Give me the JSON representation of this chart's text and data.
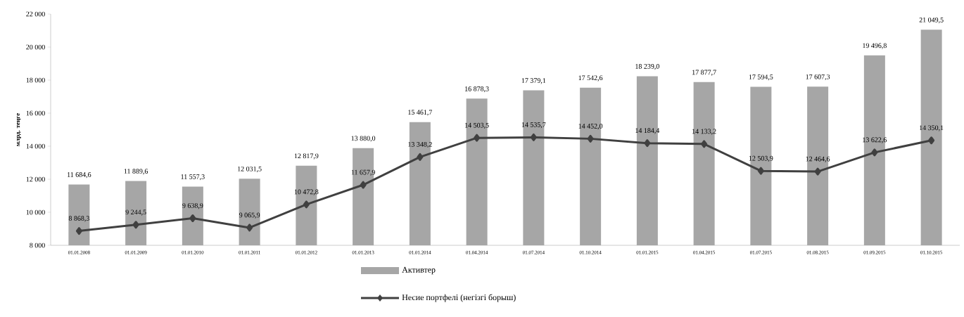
{
  "chart_data": {
    "type": "bar",
    "ylabel": "млрд. теңге",
    "categories": [
      "01.01.2008",
      "01.01.2009",
      "01.01.2010",
      "01.01.2011",
      "01.01.2012",
      "01.01.2013",
      "01.01.2014",
      "01.04.2014",
      "01.07.2014",
      "01.10.2014",
      "01.01.2015",
      "01.04.2015",
      "01.07.2015",
      "01.08.2015",
      "01.09.2015",
      "01.10.2015"
    ],
    "series": [
      {
        "name": "Активтер",
        "color": "#a6a6a6",
        "values": [
          11684.6,
          11889.6,
          11557.3,
          12031.5,
          12817.9,
          13880.0,
          15461.7,
          16878.3,
          17379.1,
          17542.6,
          18239.0,
          17877.7,
          17594.5,
          17607.3,
          19496.8,
          21049.5
        ],
        "value_labels": [
          "11 684,6",
          "11 889,6",
          "11 557,3",
          "12 031,5",
          "12 817,9",
          "13 880,0",
          "15 461,7",
          "16 878,3",
          "17 379,1",
          "17 542,6",
          "18 239,0",
          "17 877,7",
          "17 594,5",
          "17 607,3",
          "19 496,8",
          "21 049,5"
        ]
      },
      {
        "name": "Несие портфелі (негізгі борыш)",
        "type": "line",
        "color": "#404040",
        "marker": "diamond",
        "line_style": "solid",
        "values": [
          8868.3,
          9244.5,
          9638.9,
          9065.9,
          10472.8,
          11657.9,
          13348.2,
          14503.5,
          14535.7,
          14452.0,
          14184.4,
          14133.2,
          12503.9,
          12464.6,
          13622.6,
          14350.1
        ],
        "value_labels": [
          "8 868,3",
          "9 244,5",
          "9 638,9",
          "9 065,9",
          "10 472,8",
          "11 657,9",
          "13 348,2",
          "14 503,5",
          "14 535,7",
          "14 452,0",
          "14 184,4",
          "14 133,2",
          "12 503,9",
          "12 464,6",
          "13 622,6",
          "14 350,1"
        ]
      }
    ],
    "ylim": [
      8000,
      22000
    ],
    "yticks": [
      {
        "value": 8000,
        "label": "8 000"
      },
      {
        "value": 10000,
        "label": "10 000"
      },
      {
        "value": 12000,
        "label": "12 000"
      },
      {
        "value": 14000,
        "label": "14 000"
      },
      {
        "value": 16000,
        "label": "16 000"
      },
      {
        "value": 18000,
        "label": "18 000"
      },
      {
        "value": 20000,
        "label": "20 000"
      },
      {
        "value": 22000,
        "label": "22 000"
      }
    ],
    "grid": false,
    "legend": "bottom"
  }
}
